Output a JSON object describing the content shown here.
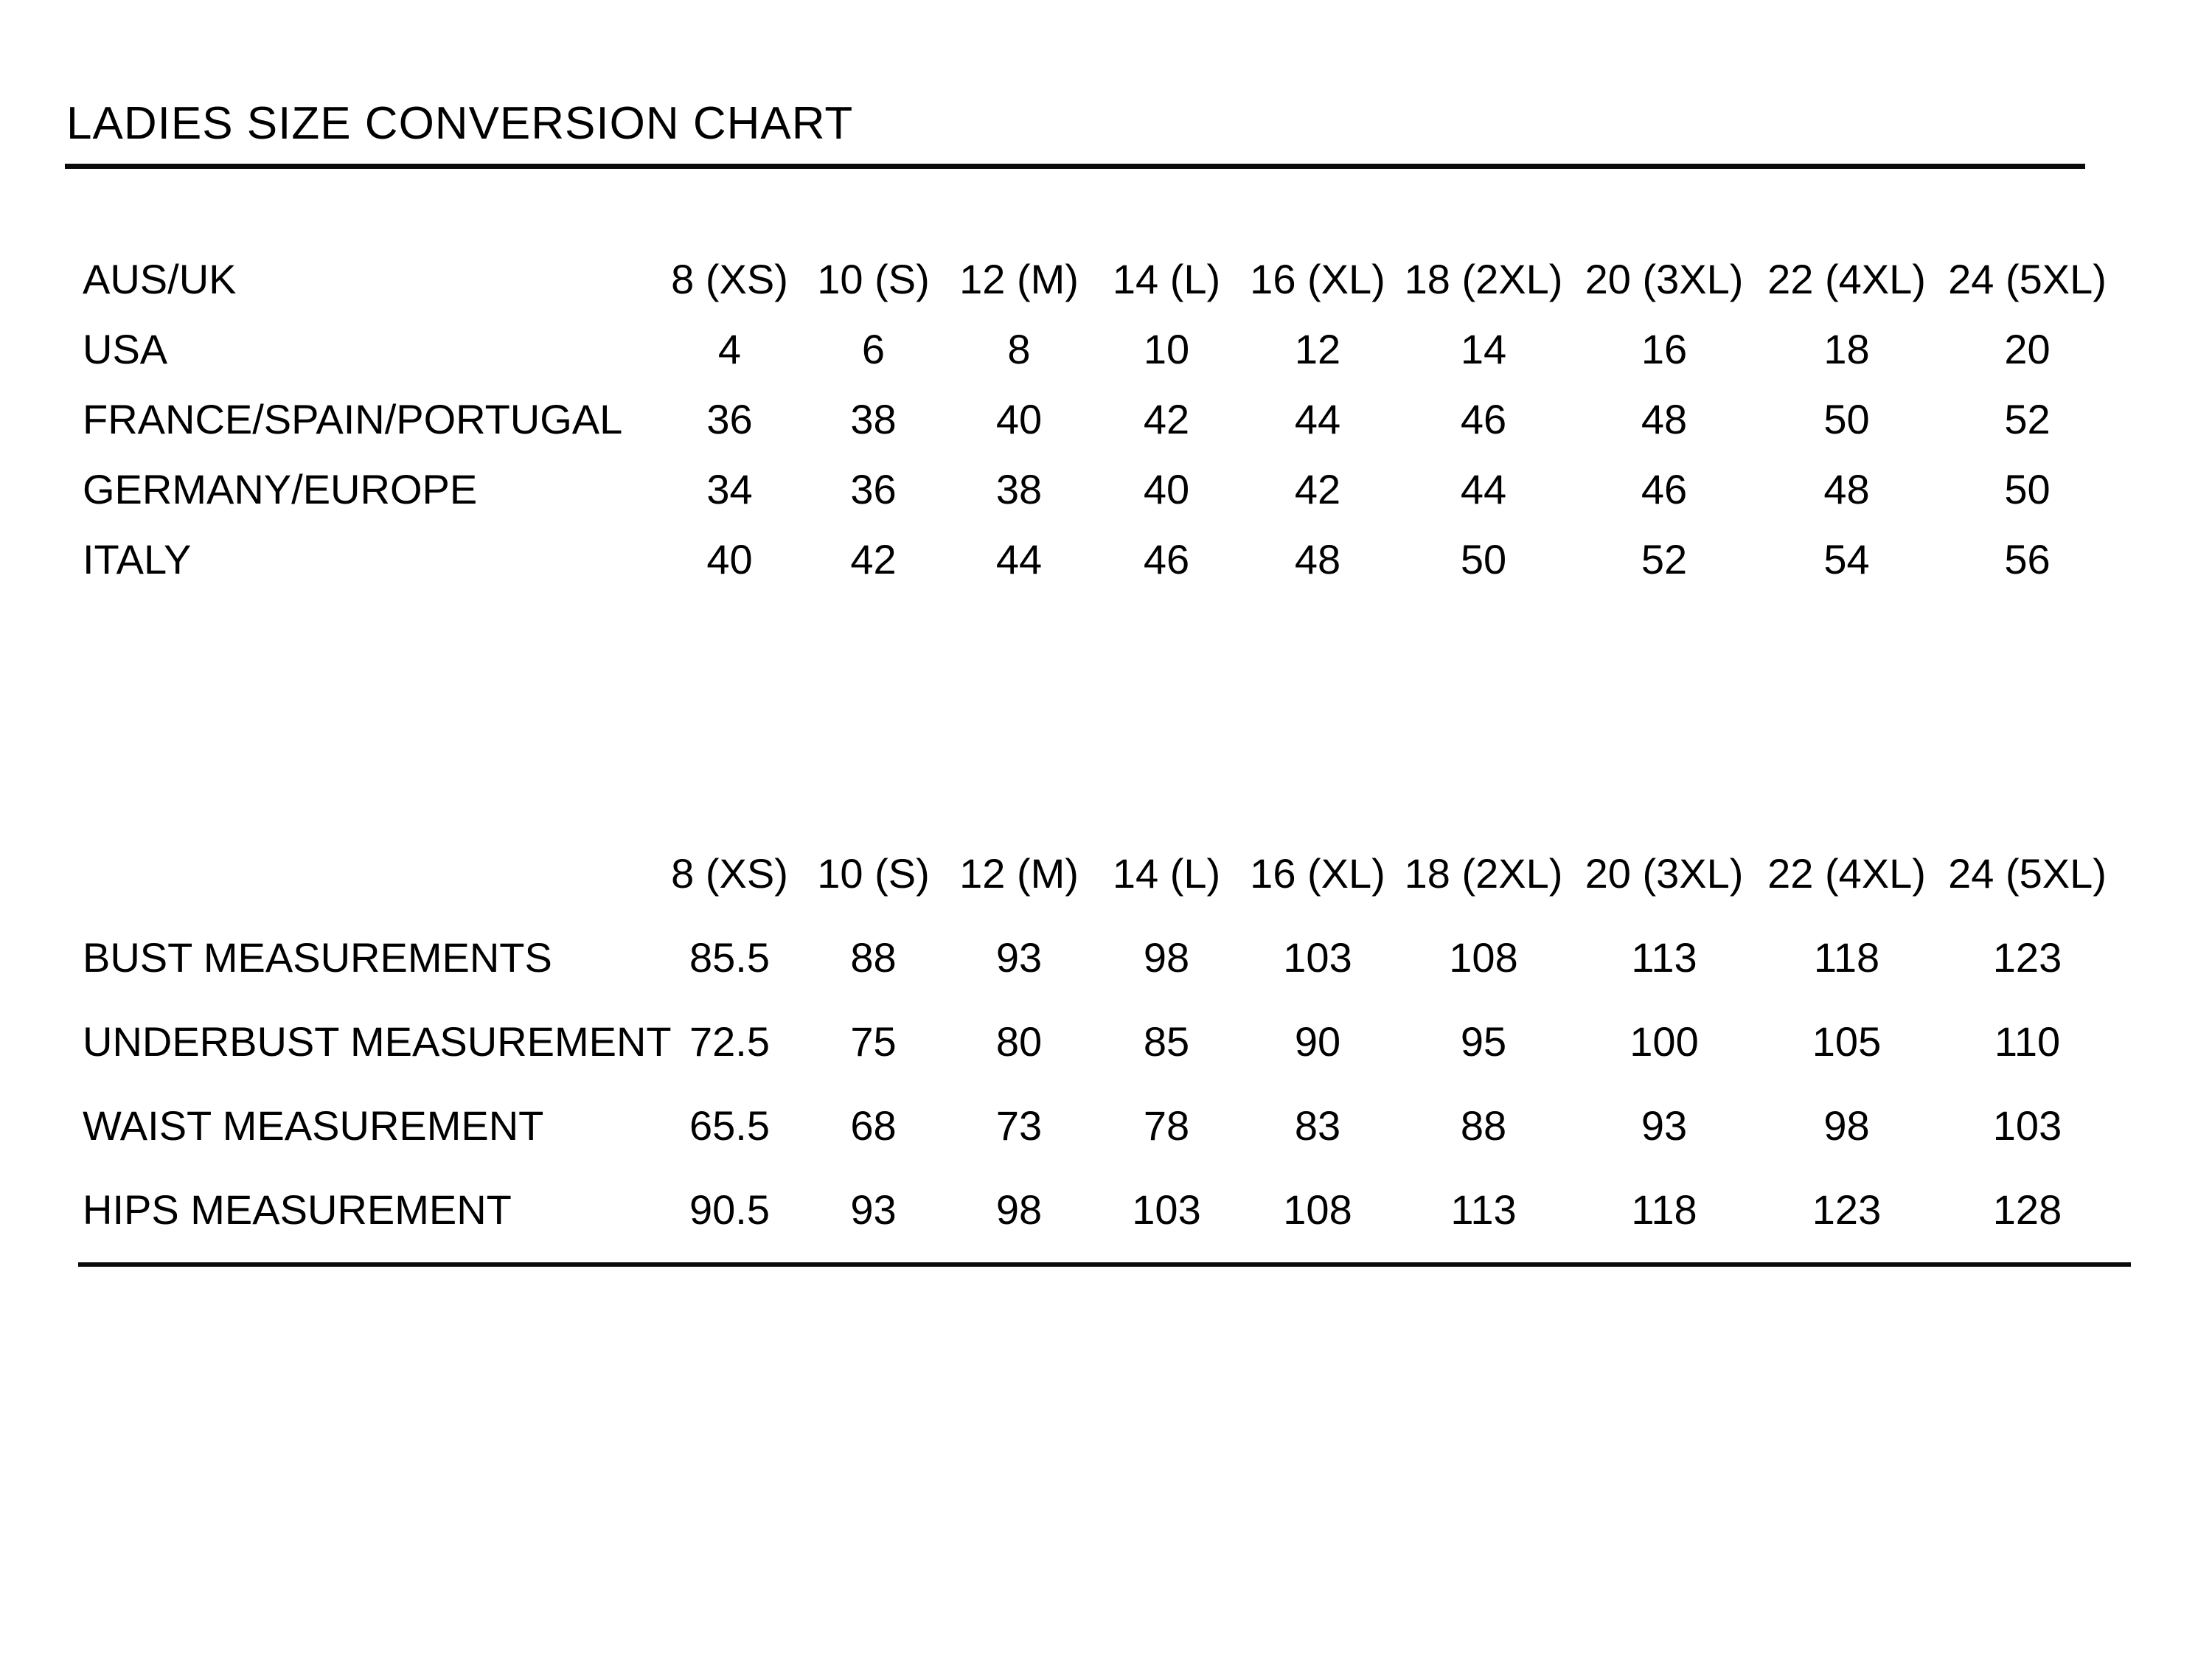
{
  "title": "LADIES SIZE CONVERSION CHART",
  "size_labels": [
    "8 (XS)",
    "10 (S)",
    "12 (M)",
    "14 (L)",
    "16 (XL)",
    "18 (2XL)",
    "20 (3XL)",
    "22 (4XL)",
    "24 (5XL)"
  ],
  "conversion_table": {
    "header_label": "AUS/UK",
    "rows": [
      {
        "label": "USA",
        "values": [
          "4",
          "6",
          "8",
          "10",
          "12",
          "14",
          "16",
          "18",
          "20"
        ]
      },
      {
        "label": "FRANCE/SPAIN/PORTUGAL",
        "values": [
          "36",
          "38",
          "40",
          "42",
          "44",
          "46",
          "48",
          "50",
          "52"
        ]
      },
      {
        "label": "GERMANY/EUROPE",
        "values": [
          "34",
          "36",
          "38",
          "40",
          "42",
          "44",
          "46",
          "48",
          "50"
        ]
      },
      {
        "label": "ITALY",
        "values": [
          "40",
          "42",
          "44",
          "46",
          "48",
          "50",
          "52",
          "54",
          "56"
        ]
      }
    ]
  },
  "measurement_table": {
    "rows": [
      {
        "label": "BUST MEASUREMENTS",
        "values": [
          "85.5",
          "88",
          "93",
          "98",
          "103",
          "108",
          "113",
          "118",
          "123"
        ]
      },
      {
        "label": "UNDERBUST MEASUREMENT",
        "values": [
          "72.5",
          "75",
          "80",
          "85",
          "90",
          "95",
          "100",
          "105",
          "110"
        ]
      },
      {
        "label": "WAIST MEASUREMENT",
        "values": [
          "65.5",
          "68",
          "73",
          "78",
          "83",
          "88",
          "93",
          "98",
          "103"
        ]
      },
      {
        "label": "HIPS MEASUREMENT",
        "values": [
          "90.5",
          "93",
          "98",
          "103",
          "108",
          "113",
          "118",
          "123",
          "128"
        ]
      }
    ]
  },
  "colors": {
    "background": "#ffffff",
    "text": "#000000",
    "rule": "#0a0a0a"
  }
}
